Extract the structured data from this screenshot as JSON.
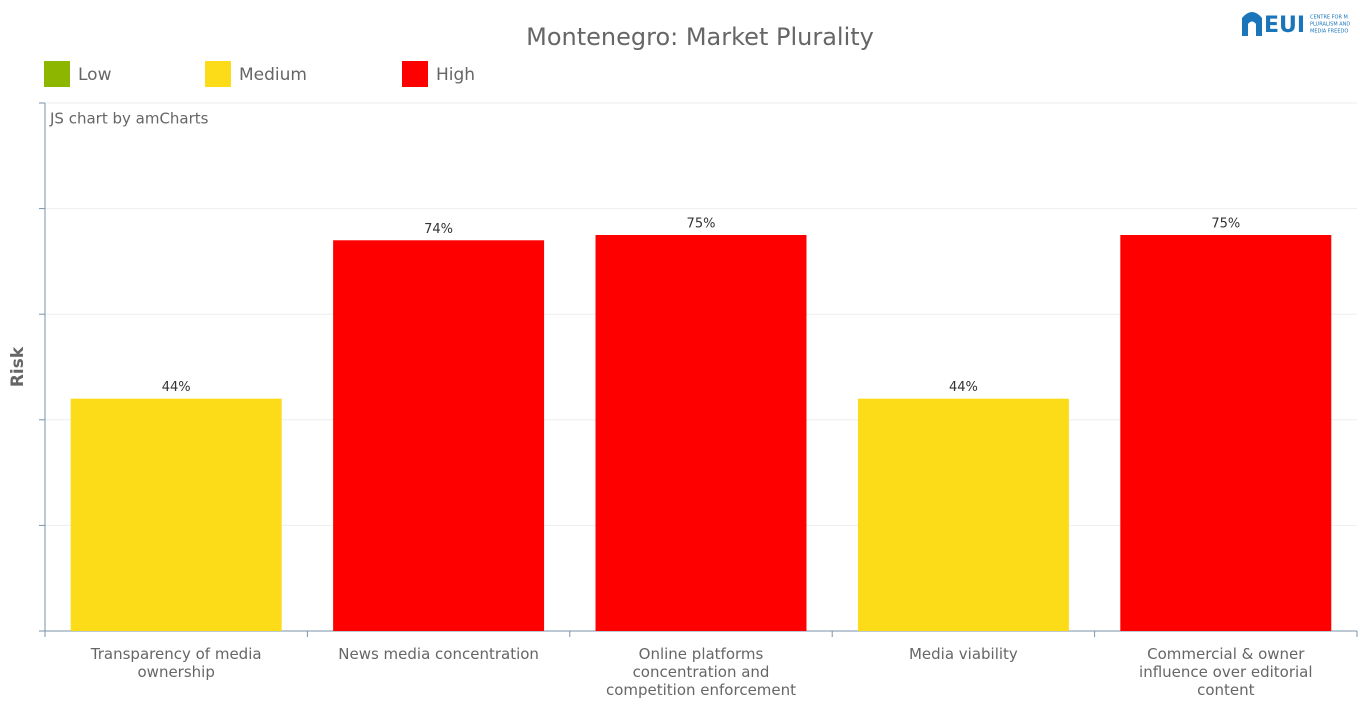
{
  "chart_data": {
    "type": "bar",
    "title": "Montenegro: Market Plurality",
    "y_label": "Risk",
    "credit": "JS chart by amCharts",
    "logo": "EUI",
    "logo_lines": [
      "CENTRE FOR M",
      "PLURALISM AND",
      "MEDIA FREEDO"
    ],
    "legend": [
      {
        "name": "Low",
        "color": "#8db600"
      },
      {
        "name": "Medium",
        "color": "#fcdc18"
      },
      {
        "name": "High",
        "color": "#ff0000"
      }
    ],
    "categories": [
      "Transparency of media ownership",
      "News media concentration",
      "Online platforms concentration and competition enforcement",
      "Media viability",
      "Commercial & owner influence over editorial content"
    ],
    "values": [
      44,
      74,
      75,
      44,
      75
    ],
    "value_labels": [
      "44%",
      "74%",
      "75%",
      "44%",
      "75%"
    ],
    "colors": [
      "#fcdc18",
      "#ff0000",
      "#ff0000",
      "#fcdc18",
      "#ff0000"
    ],
    "ylim": [
      0,
      100
    ],
    "yticks": [
      0,
      20,
      40,
      60,
      80,
      100
    ],
    "grid": true
  }
}
